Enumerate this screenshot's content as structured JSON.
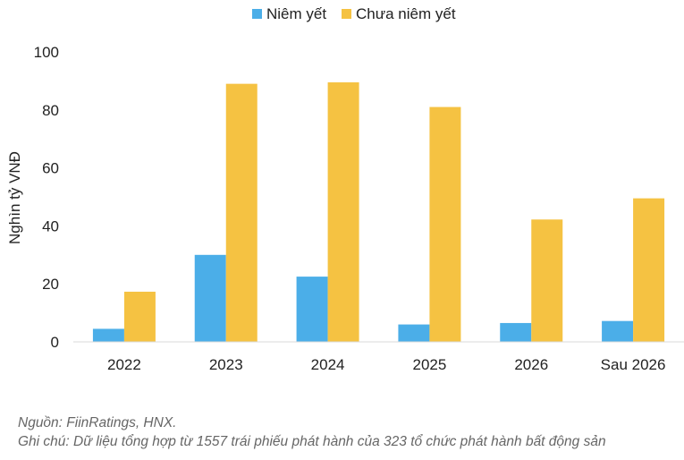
{
  "chart_data": {
    "type": "bar",
    "categories": [
      "2022",
      "2023",
      "2024",
      "2025",
      "2026",
      "Sau 2026"
    ],
    "series": [
      {
        "name": "Niêm yết",
        "color": "#4baee8",
        "values": [
          4.5,
          30,
          22.5,
          6,
          6.5,
          7.2
        ]
      },
      {
        "name": "Chưa niêm yết",
        "color": "#f5c242",
        "values": [
          17.3,
          89,
          89.5,
          81,
          42.2,
          49.5
        ]
      }
    ],
    "title": "",
    "xlabel": "",
    "ylabel": "Nghìn tỷ VNĐ",
    "ylim": [
      0,
      100
    ],
    "yticks": [
      "0",
      "20",
      "40",
      "60",
      "80",
      "100"
    ],
    "grid": false,
    "legend_position": "top-center"
  },
  "notes": {
    "source": "Nguồn: FiinRatings, HNX.",
    "note": "Ghi chú: Dữ liệu tổng hợp từ 1557 trái phiếu phát hành của 323 tổ chức phát hành bất động sản"
  }
}
